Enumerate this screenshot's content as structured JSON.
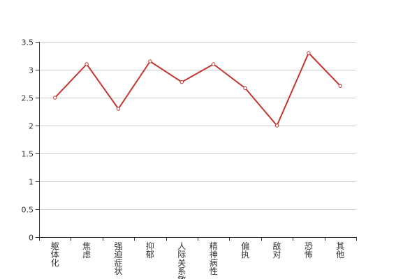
{
  "chart_data": {
    "type": "line",
    "title": "",
    "xlabel": "",
    "ylabel": "",
    "categories": [
      "躯体化",
      "焦虑",
      "强迫症状",
      "抑郁",
      "人际关系敏感",
      "精神病性",
      "偏执",
      "敌对",
      "恐怖",
      "其他"
    ],
    "series": [
      {
        "values": [
          2.5,
          3.1,
          2.3,
          3.15,
          2.78,
          3.1,
          2.67,
          2.0,
          3.3,
          2.71
        ]
      }
    ],
    "ylim": [
      0,
      3.5
    ],
    "yticks": [
      "0",
      "0.5",
      "1",
      "1.5",
      "2",
      "2.5",
      "3",
      "3.5"
    ],
    "grid": true,
    "legend": "none",
    "colors": {
      "line": "#c23531",
      "axis": "#333333",
      "grid": "#cccccc",
      "marker_fill": "#ffffff"
    }
  }
}
